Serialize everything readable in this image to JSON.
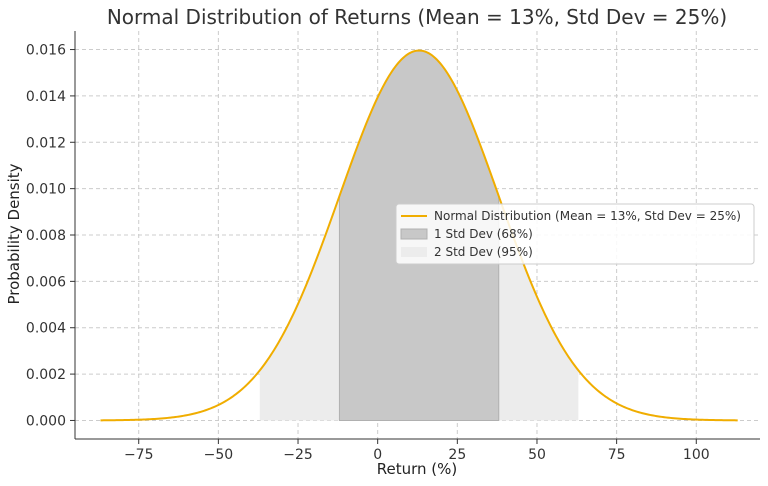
{
  "chart_data": {
    "type": "area",
    "title": "Normal Distribution of Returns (Mean = 13%, Std Dev = 25%)",
    "xlabel": "Return (%)",
    "ylabel": "Probability Density",
    "mean": 13,
    "std_dev": 25,
    "xlim": [
      -95,
      120
    ],
    "ylim": [
      -0.0008,
      0.0168
    ],
    "curve_x_range": [
      -87,
      113
    ],
    "x_ticks": [
      -75,
      -50,
      -25,
      0,
      25,
      50,
      75,
      100
    ],
    "x_tick_labels": [
      "−75",
      "−50",
      "−25",
      "0",
      "25",
      "50",
      "75",
      "100"
    ],
    "y_ticks": [
      0.0,
      0.002,
      0.004,
      0.006,
      0.008,
      0.01,
      0.012,
      0.014,
      0.016
    ],
    "y_tick_labels": [
      "0.000",
      "0.002",
      "0.004",
      "0.006",
      "0.008",
      "0.010",
      "0.012",
      "0.014",
      "0.016"
    ],
    "grid": true,
    "legend_position": "right",
    "series": [
      {
        "name": "Normal Distribution (Mean = 13%, Std Dev = 25%)",
        "kind": "line",
        "color": "#f0ad00"
      },
      {
        "name": "1 Std Dev (68%)",
        "kind": "band",
        "x_range": [
          -12,
          38
        ],
        "color": "#c8c8c8"
      },
      {
        "name": "2 Std Dev (95%)",
        "kind": "band",
        "x_range": [
          -37,
          63
        ],
        "color": "#ececec"
      }
    ]
  }
}
